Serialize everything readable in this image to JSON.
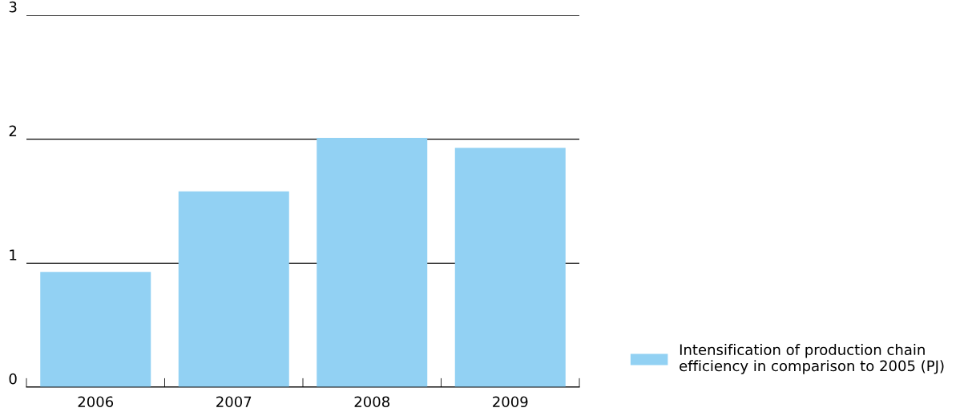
{
  "chart_data": {
    "type": "bar",
    "categories": [
      "2006",
      "2007",
      "2008",
      "2009"
    ],
    "series": [
      {
        "name": "Intensification of production chain\nefficiency in comparison to 2005 (PJ)",
        "color": "#92d1f3",
        "values": [
          0.93,
          1.58,
          2.01,
          1.93
        ]
      }
    ],
    "ylim": [
      0,
      3
    ],
    "yticks": [
      0,
      1,
      2,
      3
    ],
    "grid": "y",
    "legend": "bottom right"
  }
}
